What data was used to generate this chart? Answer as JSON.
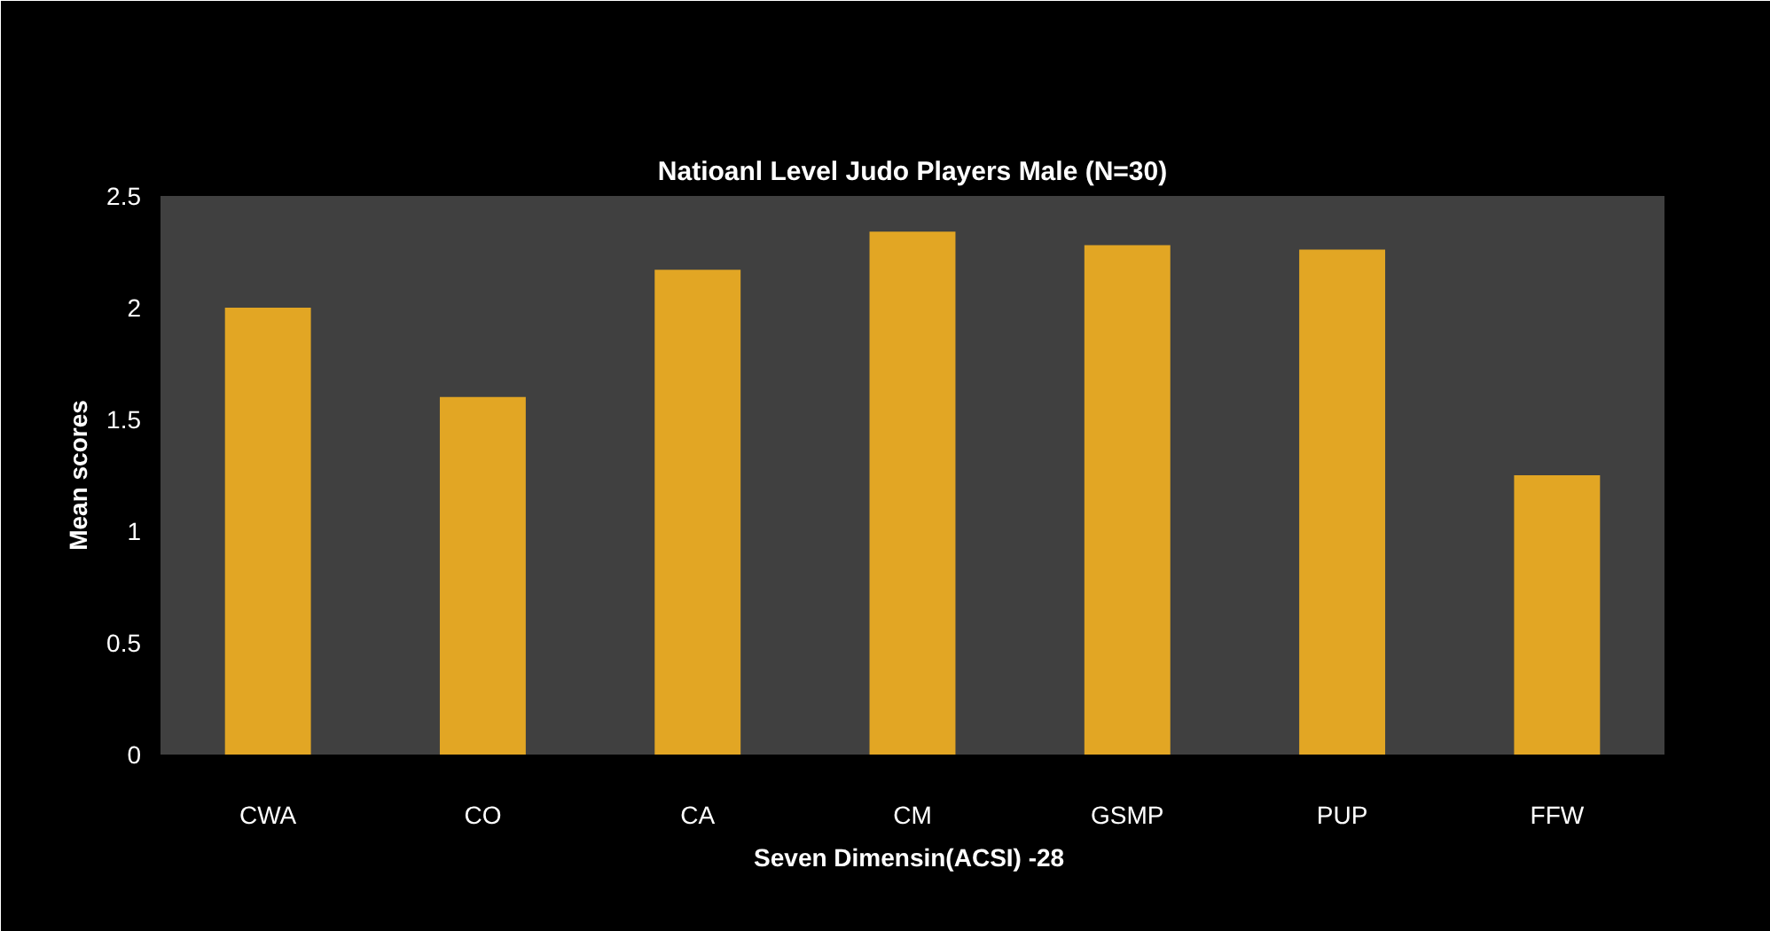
{
  "chart_data": {
    "type": "bar",
    "title": "Natioanl Level Judo Players Male (N=30)",
    "xlabel": "Seven  Dimensin(ACSI) -28",
    "ylabel": "Mean scores",
    "categories": [
      "CWA",
      "CO",
      "CA",
      "CM",
      "GSMP",
      "PUP",
      "FFW"
    ],
    "series": [
      {
        "color": "#e2a624",
        "values": [
          2.0,
          1.6,
          2.17,
          2.34,
          2.28,
          2.26,
          1.25
        ]
      }
    ],
    "ylim": [
      0,
      2.5
    ],
    "yticks": [
      0,
      0.5,
      1,
      1.5,
      2,
      2.5
    ]
  }
}
